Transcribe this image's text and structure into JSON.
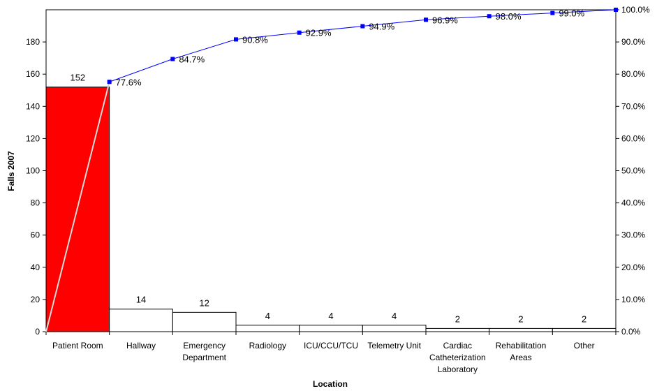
{
  "chart_data": {
    "type": "bar",
    "subtype": "pareto",
    "xlabel": "Location",
    "ylabel": "Falls 2007",
    "ylim": [
      0,
      200
    ],
    "y2lim": [
      0,
      100
    ],
    "y_ticks": [
      0,
      20,
      40,
      60,
      80,
      100,
      120,
      140,
      160,
      180
    ],
    "y2_ticks": [
      "0.0%",
      "10.0%",
      "20.0%",
      "30.0%",
      "40.0%",
      "50.0%",
      "60.0%",
      "70.0%",
      "80.0%",
      "90.0%",
      "100.0%"
    ],
    "categories": [
      [
        "Patient Room"
      ],
      [
        "Hallway"
      ],
      [
        "Emergency",
        "Department"
      ],
      [
        "Radiology"
      ],
      [
        "ICU/CCU/TCU"
      ],
      [
        "Telemetry Unit"
      ],
      [
        "Cardiac",
        "Catheterization",
        "Laboratory"
      ],
      [
        "Rehabilitation",
        "Areas"
      ],
      [
        "Other"
      ]
    ],
    "values": [
      152,
      14,
      12,
      4,
      4,
      4,
      2,
      2,
      2
    ],
    "bar_labels": [
      "152",
      "14",
      "12",
      "4",
      "4",
      "4",
      "2",
      "2",
      "2"
    ],
    "cumulative_percent": [
      77.6,
      84.7,
      90.8,
      92.9,
      94.9,
      96.9,
      98.0,
      99.0,
      100.0
    ],
    "cumulative_labels": [
      "77.6%",
      "84.7%",
      "90.8%",
      "92.9%",
      "94.9%",
      "96.9%",
      "98.0%",
      "99.0%",
      ""
    ],
    "colors": {
      "highlight_bar": "#ff0000",
      "bar": "#ffffff",
      "line": "#0000ff",
      "marker": "#0000ff",
      "diagonal": "#d9d9d9"
    },
    "grid": false,
    "legend": "none"
  }
}
